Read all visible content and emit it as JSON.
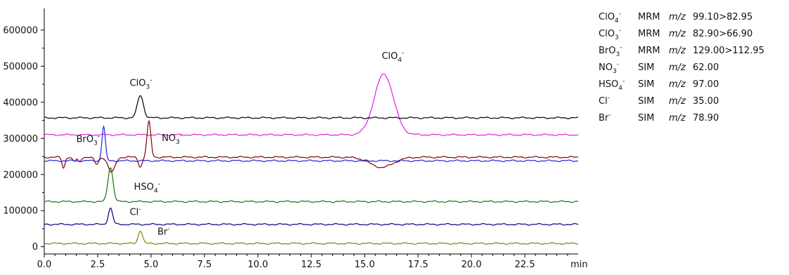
{
  "chart_data": {
    "type": "line",
    "xlabel": "min",
    "xlim": [
      0,
      25
    ],
    "ylim": [
      -20000,
      660000
    ],
    "x_ticks": [
      0.0,
      2.5,
      5.0,
      7.5,
      10.0,
      12.5,
      15.0,
      17.5,
      20.0,
      22.5
    ],
    "x_tick_labels": [
      "0.0",
      "2.5",
      "5.0",
      "7.5",
      "10.0",
      "12.5",
      "15.0",
      "17.5",
      "20.0",
      "22.5"
    ],
    "y_ticks": [
      0,
      100000,
      200000,
      300000,
      400000,
      500000,
      600000
    ],
    "y_tick_labels": [
      "0",
      "100000",
      "200000",
      "300000",
      "400000",
      "500000",
      "600000"
    ],
    "grid": false,
    "legend_position": "right",
    "series": [
      {
        "name": "ClO4-",
        "mode": "MRM",
        "mz": "99.10>82.95",
        "color": "#e020e0",
        "baseline": 310000,
        "peaks": [
          {
            "x": 15.9,
            "height": 168000,
            "width": 0.45
          }
        ],
        "label": "ClO4-",
        "label_x": 15.8,
        "label_y": 520000
      },
      {
        "name": "ClO3-",
        "mode": "MRM",
        "mz": "82.90>66.90",
        "color": "#000000",
        "baseline": 357000,
        "peaks": [
          {
            "x": 4.5,
            "height": 62000,
            "width": 0.14
          }
        ],
        "label": "ClO3-",
        "label_x": 4.0,
        "label_y": 445000
      },
      {
        "name": "BrO3-",
        "mode": "MRM",
        "mz": "129.00>112.95",
        "color": "#800000",
        "baseline": 248000,
        "peaks": [
          {
            "x": 0.9,
            "height": -30000,
            "width": 0.07
          },
          {
            "x": 1.4,
            "height": -12000,
            "width": 0.08
          },
          {
            "x": 1.65,
            "height": -14000,
            "width": 0.07
          },
          {
            "x": 2.45,
            "height": -20000,
            "width": 0.1
          },
          {
            "x": 3.15,
            "height": -42000,
            "width": 0.16
          },
          {
            "x": 4.5,
            "height": -26000,
            "width": 0.09
          },
          {
            "x": 4.9,
            "height": 98000,
            "width": 0.09
          },
          {
            "x": 15.8,
            "height": -28000,
            "width": 0.55
          }
        ],
        "label": "BrO3-",
        "label_x": 1.5,
        "label_y": 290000
      },
      {
        "name": "NO3-",
        "mode": "SIM",
        "mz": "62.00",
        "color": "#2020e0",
        "baseline": 238000,
        "peaks": [
          {
            "x": 2.78,
            "height": 95000,
            "width": 0.08
          }
        ],
        "label": "NO3-",
        "label_x": 5.5,
        "label_y": 293000
      },
      {
        "name": "HSO4-",
        "mode": "SIM",
        "mz": "97.00",
        "color": "#0a7a0a",
        "baseline": 125000,
        "peaks": [
          {
            "x": 3.1,
            "height": 95000,
            "width": 0.12
          }
        ],
        "label": "HSO4-",
        "label_x": 4.2,
        "label_y": 158000
      },
      {
        "name": "Cl-",
        "mode": "SIM",
        "mz": "35.00",
        "color": "#000080",
        "baseline": 62000,
        "peaks": [
          {
            "x": 3.1,
            "height": 45000,
            "width": 0.1
          }
        ],
        "label": "Cl-",
        "label_x": 4.0,
        "label_y": 88000
      },
      {
        "name": "Br-",
        "mode": "SIM",
        "mz": "78.90",
        "color": "#808000",
        "baseline": 9000,
        "peaks": [
          {
            "x": 4.5,
            "height": 36000,
            "width": 0.1
          }
        ],
        "label": "Br-",
        "label_x": 5.3,
        "label_y": 33000
      }
    ]
  },
  "legend": [
    {
      "ion": "ClO",
      "sub": "4",
      "sup": "-",
      "mode": "MRM",
      "mz_label": "m/z",
      "value": "99.10>82.95"
    },
    {
      "ion": "ClO",
      "sub": "3",
      "sup": "-",
      "mode": "MRM",
      "mz_label": "m/z",
      "value": "82.90>66.90"
    },
    {
      "ion": "BrO",
      "sub": "3",
      "sup": "-",
      "mode": "MRM",
      "mz_label": "m/z",
      "value": "129.00>112.95"
    },
    {
      "ion": "NO",
      "sub": "3",
      "sup": "-",
      "mode": "SIM",
      "mz_label": "m/z",
      "value": "62.00"
    },
    {
      "ion": "HSO",
      "sub": "4",
      "sup": "-",
      "mode": "SIM",
      "mz_label": "m/z",
      "value": "97.00"
    },
    {
      "ion": "Cl",
      "sub": "",
      "sup": "-",
      "mode": "SIM",
      "mz_label": "m/z",
      "value": "35.00"
    },
    {
      "ion": "Br",
      "sub": "",
      "sup": "-",
      "mode": "SIM",
      "mz_label": "m/z",
      "value": "78.90"
    }
  ]
}
